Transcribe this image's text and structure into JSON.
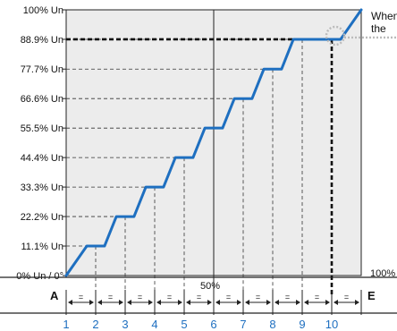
{
  "chart_data": {
    "type": "line",
    "title": "",
    "xlabel": "",
    "ylabel": "",
    "ylim": [
      0,
      100
    ],
    "xlim": [
      0,
      100
    ],
    "y_ticks": [
      {
        "value": 0,
        "label": "0% Un / 0°"
      },
      {
        "value": 11.1,
        "label": "11.1% Un"
      },
      {
        "value": 22.2,
        "label": "22.2% Un"
      },
      {
        "value": 33.3,
        "label": "33.3% Un"
      },
      {
        "value": 44.4,
        "label": "44.4% Un"
      },
      {
        "value": 55.5,
        "label": "55.5% Un"
      },
      {
        "value": 66.6,
        "label": "66.6% Un"
      },
      {
        "value": 77.7,
        "label": "77.7% Un"
      },
      {
        "value": 88.9,
        "label": "88.9% Un"
      },
      {
        "value": 100,
        "label": "100% Un"
      }
    ],
    "x_start_label": "A",
    "x_end_label": "E",
    "x_mid_label": "50%",
    "x_right_label": "100%",
    "segment_label": "=",
    "step_numbers": [
      "1",
      "2",
      "3",
      "4",
      "5",
      "6",
      "7",
      "8",
      "9",
      "10"
    ],
    "step_positions": [
      0,
      10,
      20,
      30,
      40,
      50,
      60,
      70,
      80,
      90,
      100
    ],
    "series": [
      {
        "x": [
          0,
          7,
          13,
          17,
          23,
          27,
          33,
          37,
          43,
          47,
          53,
          57,
          63,
          67,
          73,
          77,
          83,
          87,
          93,
          100
        ],
        "y": [
          0,
          11.1,
          11.1,
          22.2,
          22.2,
          33.3,
          33.3,
          44.4,
          44.4,
          55.5,
          55.5,
          66.6,
          66.6,
          77.7,
          77.7,
          88.9,
          88.9,
          88.9,
          88.9,
          100
        ]
      }
    ],
    "highlight": {
      "x": 90,
      "y": 88.9
    },
    "annotation_lines": [
      "When",
      "the"
    ],
    "colors": {
      "line": "#1e6fc0",
      "step_numbers": "#1e6fc0",
      "plot_bg": "#ececec",
      "highlight": "#bbbbbb"
    }
  }
}
